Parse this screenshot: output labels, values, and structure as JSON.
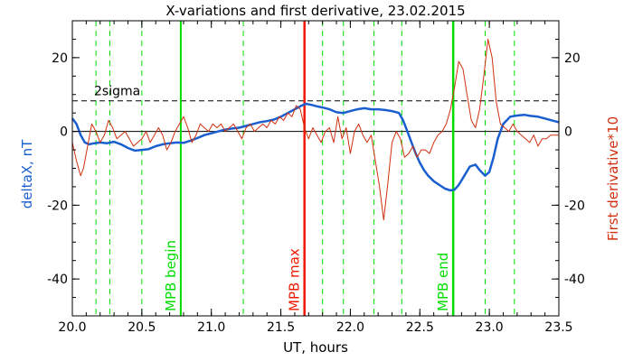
{
  "chart_data": {
    "type": "line",
    "title": "X-variations and first derivative, 23.02.2015",
    "xlabel": "UT, hours",
    "ylabel_left": "deltaX, nT",
    "ylabel_right": "First derivative*10",
    "xlim": [
      20.0,
      23.5
    ],
    "ylim": [
      -50,
      30
    ],
    "x_ticks": [
      20.0,
      20.5,
      21.0,
      21.5,
      22.0,
      22.5,
      23.0,
      23.5
    ],
    "y_ticks": [
      -40,
      -20,
      0,
      20
    ],
    "grid": false,
    "colors": {
      "deltaX": "#1a5fd0",
      "derivative": "#d03010",
      "green": "#00dd00",
      "red": "#ee1a00",
      "axes": "#000000"
    },
    "annotations": {
      "sigma_label": "2sigma",
      "sigma_upper": 8.3,
      "zero_level": 0,
      "mpb_begin": {
        "x": 20.78,
        "label": "MPB begin"
      },
      "mpb_max": {
        "x": 21.67,
        "label": "MPB max"
      },
      "mpb_end": {
        "x": 22.74,
        "label": "MPB end"
      },
      "dashed_lines_x": [
        20.17,
        20.27,
        20.5,
        21.23,
        21.8,
        21.95,
        22.17,
        22.37,
        22.97,
        23.18
      ]
    },
    "series": [
      {
        "key": "deltaX",
        "name": "deltaX, nT",
        "x": [
          20.0,
          20.03,
          20.06,
          20.09,
          20.12,
          20.16,
          20.2,
          20.25,
          20.3,
          20.35,
          20.4,
          20.45,
          20.5,
          20.55,
          20.6,
          20.65,
          20.7,
          20.75,
          20.8,
          20.85,
          20.9,
          20.95,
          21.0,
          21.05,
          21.1,
          21.15,
          21.2,
          21.25,
          21.3,
          21.35,
          21.4,
          21.45,
          21.5,
          21.55,
          21.6,
          21.65,
          21.68,
          21.72,
          21.76,
          21.8,
          21.85,
          21.9,
          21.95,
          22.0,
          22.05,
          22.1,
          22.15,
          22.2,
          22.25,
          22.3,
          22.35,
          22.38,
          22.41,
          22.44,
          22.47,
          22.5,
          22.53,
          22.56,
          22.6,
          22.64,
          22.68,
          22.72,
          22.75,
          22.78,
          22.82,
          22.86,
          22.9,
          22.93,
          22.97,
          23.0,
          23.03,
          23.06,
          23.1,
          23.15,
          23.2,
          23.25,
          23.3,
          23.35,
          23.4,
          23.45,
          23.5
        ],
        "y": [
          3.5,
          2.0,
          -1.0,
          -3.0,
          -3.5,
          -3.2,
          -3.0,
          -3.2,
          -2.8,
          -3.5,
          -4.5,
          -5.2,
          -5.0,
          -4.8,
          -4.0,
          -3.5,
          -3.2,
          -3.0,
          -3.1,
          -2.5,
          -1.8,
          -1.0,
          -0.5,
          0.0,
          0.5,
          0.8,
          1.0,
          1.5,
          2.0,
          2.5,
          2.8,
          3.2,
          4.0,
          5.0,
          6.0,
          7.0,
          7.5,
          7.2,
          6.8,
          6.5,
          6.0,
          5.2,
          5.0,
          5.5,
          6.0,
          6.3,
          6.0,
          6.0,
          5.8,
          5.5,
          5.0,
          3.0,
          0.0,
          -3.0,
          -6.0,
          -8.5,
          -10.5,
          -12.0,
          -13.5,
          -14.5,
          -15.5,
          -16.0,
          -15.8,
          -14.5,
          -12.0,
          -9.5,
          -9.0,
          -10.5,
          -12.0,
          -11.0,
          -7.0,
          -2.0,
          2.0,
          4.0,
          4.3,
          4.5,
          4.2,
          4.0,
          3.5,
          3.0,
          2.5
        ]
      },
      {
        "key": "derivative",
        "name": "First derivative*10",
        "x": [
          20.0,
          20.03,
          20.06,
          20.08,
          20.11,
          20.14,
          20.17,
          20.2,
          20.23,
          20.26,
          20.29,
          20.32,
          20.35,
          20.38,
          20.41,
          20.44,
          20.47,
          20.5,
          20.53,
          20.56,
          20.59,
          20.62,
          20.65,
          20.68,
          20.71,
          20.74,
          20.77,
          20.8,
          20.83,
          20.86,
          20.89,
          20.92,
          20.95,
          20.98,
          21.01,
          21.04,
          21.07,
          21.1,
          21.13,
          21.16,
          21.19,
          21.22,
          21.25,
          21.28,
          21.31,
          21.34,
          21.37,
          21.4,
          21.43,
          21.46,
          21.49,
          21.52,
          21.55,
          21.58,
          21.61,
          21.64,
          21.67,
          21.7,
          21.73,
          21.76,
          21.79,
          21.82,
          21.85,
          21.88,
          21.91,
          21.94,
          21.97,
          22.0,
          22.03,
          22.06,
          22.09,
          22.12,
          22.15,
          22.18,
          22.21,
          22.24,
          22.27,
          22.3,
          22.33,
          22.36,
          22.39,
          22.42,
          22.45,
          22.48,
          22.51,
          22.54,
          22.57,
          22.6,
          22.63,
          22.66,
          22.69,
          22.72,
          22.75,
          22.78,
          22.81,
          22.84,
          22.87,
          22.9,
          22.93,
          22.96,
          22.99,
          23.02,
          23.05,
          23.08,
          23.11,
          23.14,
          23.17,
          23.2,
          23.23,
          23.26,
          23.29,
          23.32,
          23.35,
          23.38,
          23.41,
          23.44,
          23.47,
          23.5
        ],
        "y": [
          -3,
          -8,
          -12,
          -10,
          -4,
          2,
          0,
          -3,
          -1,
          3,
          1,
          -2,
          -1,
          0,
          -2,
          -4,
          -3,
          -2,
          0,
          -3,
          -1,
          1,
          -1,
          -5,
          -3,
          0,
          2,
          4,
          1,
          -3,
          -1,
          2,
          1,
          0,
          2,
          1,
          2,
          0,
          1,
          2,
          0,
          -2,
          1,
          2,
          0,
          1,
          2,
          1,
          3,
          2,
          4,
          3,
          5,
          4,
          7,
          6,
          1,
          -2,
          1,
          -1,
          -3,
          0,
          1,
          -3,
          4,
          -2,
          1,
          -6,
          0,
          2,
          -1,
          -3,
          -1,
          -8,
          -15,
          -24,
          -14,
          -3,
          0,
          -2,
          -7,
          -6,
          -4,
          -7,
          -5,
          -5,
          -6,
          -3,
          -1,
          0,
          2,
          6,
          12,
          19,
          17,
          10,
          3,
          1,
          6,
          15,
          25,
          20,
          8,
          2,
          1,
          0,
          2,
          0,
          -1,
          -2,
          -3,
          -1,
          -4,
          -2,
          -2,
          -1,
          -1,
          -1
        ]
      }
    ]
  }
}
